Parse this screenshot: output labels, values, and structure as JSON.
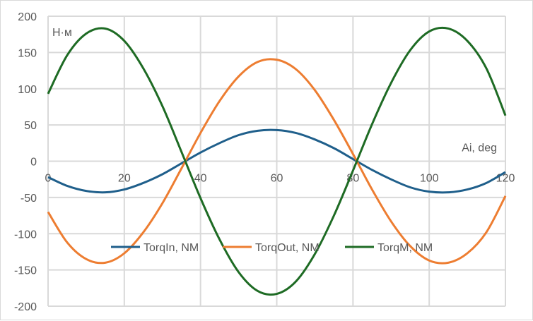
{
  "chart_data": {
    "type": "line",
    "title": "",
    "xlabel": "Ai, deg",
    "ylabel": "Н·м",
    "xlim": [
      0,
      120
    ],
    "ylim": [
      -200,
      200
    ],
    "xticks": [
      0,
      20,
      40,
      60,
      80,
      100,
      120
    ],
    "yticks": [
      -200,
      -150,
      -100,
      -50,
      0,
      50,
      100,
      150,
      200
    ],
    "grid": true,
    "legend": "bottom-center",
    "x": [
      0,
      5,
      10,
      15,
      20,
      25,
      30,
      35,
      40,
      45,
      50,
      55,
      60,
      65,
      70,
      75,
      80,
      85,
      90,
      95,
      100,
      105,
      110,
      115,
      120
    ],
    "series": [
      {
        "name": "TorqIn, NM",
        "color": "#1f5f8b",
        "values": [
          -22,
          -34,
          -41,
          -43,
          -39,
          -30,
          -18,
          -3,
          12,
          25,
          36,
          42,
          43,
          39,
          30,
          18,
          3,
          -12,
          -25,
          -36,
          -42,
          -43,
          -39,
          -30,
          -15
        ]
      },
      {
        "name": "TorqOut, NM",
        "color": "#ed7d31",
        "values": [
          -70,
          -112,
          -135,
          -140,
          -127,
          -98,
          -58,
          -10,
          39,
          83,
          117,
          137,
          140,
          127,
          98,
          57,
          10,
          -39,
          -83,
          -117,
          -137,
          -140,
          -127,
          -98,
          -48
        ]
      },
      {
        "name": "TorqM, NM",
        "color": "#1e6b24",
        "values": [
          93,
          146,
          176,
          183,
          166,
          128,
          76,
          13,
          -51,
          -108,
          -153,
          -179,
          -183,
          -166,
          -128,
          -75,
          -13,
          51,
          108,
          153,
          179,
          183,
          166,
          128,
          63
        ]
      }
    ]
  }
}
